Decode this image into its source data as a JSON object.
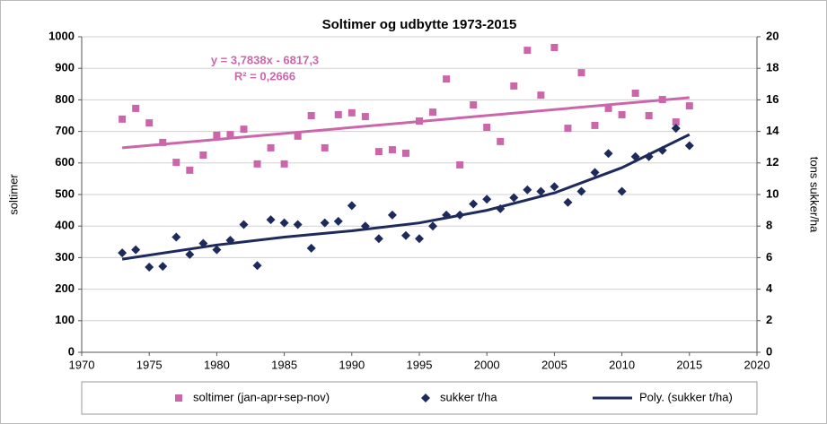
{
  "chart_data": {
    "type": "scatter",
    "title": "Soltimer og udbytte 1973-2015",
    "ylabel": "soltimer",
    "y2label": "tons sukker/ha",
    "xlim": [
      1970,
      2020
    ],
    "xticks": [
      1970,
      1975,
      1980,
      1985,
      1990,
      1995,
      2000,
      2005,
      2010,
      2015,
      2020
    ],
    "ylim": [
      0,
      1000
    ],
    "yticks": [
      0,
      100,
      200,
      300,
      400,
      500,
      600,
      700,
      800,
      900,
      1000
    ],
    "y2lim": [
      0,
      20
    ],
    "y2ticks": [
      0,
      2,
      4,
      6,
      8,
      10,
      12,
      14,
      16,
      18,
      20
    ],
    "grid": true,
    "legend": "bottom",
    "series": [
      {
        "name": "soltimer (jan-apr+sep-nov)",
        "color": "#cc66aa",
        "marker": "square",
        "x": [
          1973,
          1974,
          1975,
          1976,
          1977,
          1978,
          1979,
          1980,
          1981,
          1982,
          1983,
          1984,
          1985,
          1986,
          1987,
          1988,
          1989,
          1990,
          1991,
          1992,
          1993,
          1994,
          1995,
          1996,
          1997,
          1998,
          1999,
          2000,
          2001,
          2002,
          2003,
          2004,
          2005,
          2006,
          2007,
          2008,
          2009,
          2010,
          2011,
          2012,
          2013,
          2014,
          2015
        ],
        "values": [
          739,
          773,
          727,
          665,
          602,
          577,
          625,
          688,
          690,
          707,
          597,
          648,
          597,
          685,
          750,
          648,
          753,
          759,
          747,
          636,
          642,
          631,
          733,
          761,
          866,
          594,
          784,
          713,
          668,
          844,
          957,
          815,
          966,
          710,
          886,
          719,
          773,
          753,
          821,
          750,
          801,
          730,
          781
        ],
        "trendline": {
          "x": [
            1973,
            2015
          ],
          "values": [
            648.1,
            807.1
          ],
          "color": "#cc66aa"
        }
      },
      {
        "name": "sukker t/ha",
        "color": "#1f2a5c",
        "marker": "diamond",
        "axis": "y2",
        "x": [
          1973,
          1974,
          1975,
          1976,
          1977,
          1978,
          1979,
          1980,
          1981,
          1982,
          1983,
          1984,
          1985,
          1986,
          1987,
          1988,
          1989,
          1990,
          1991,
          1992,
          1993,
          1994,
          1995,
          1996,
          1997,
          1998,
          1999,
          2000,
          2001,
          2002,
          2003,
          2004,
          2005,
          2006,
          2007,
          2008,
          2009,
          2010,
          2011,
          2012,
          2013,
          2014,
          2015
        ],
        "values": [
          6.3,
          6.5,
          5.4,
          5.45,
          7.3,
          6.2,
          6.9,
          6.5,
          7.1,
          8.1,
          5.5,
          8.4,
          8.2,
          8.1,
          6.6,
          8.2,
          8.3,
          9.3,
          8.0,
          7.2,
          8.7,
          7.4,
          7.2,
          8.0,
          8.7,
          8.7,
          9.4,
          9.7,
          9.1,
          9.8,
          10.3,
          10.2,
          10.5,
          9.5,
          10.2,
          11.4,
          12.6,
          10.2,
          12.4,
          12.4,
          12.8,
          14.2,
          13.1
        ]
      },
      {
        "name": "Poly. (sukker t/ha)",
        "color": "#1f2a5c",
        "marker": "line",
        "axis": "y2",
        "x": [
          1973,
          1980,
          1985,
          1990,
          1995,
          2000,
          2005,
          2010,
          2015
        ],
        "values": [
          5.9,
          6.8,
          7.3,
          7.7,
          8.2,
          9.0,
          10.1,
          11.7,
          13.8
        ]
      }
    ],
    "annotations": [
      "y = 3,7838x - 6817,3",
      "R² = 0,2666"
    ]
  }
}
